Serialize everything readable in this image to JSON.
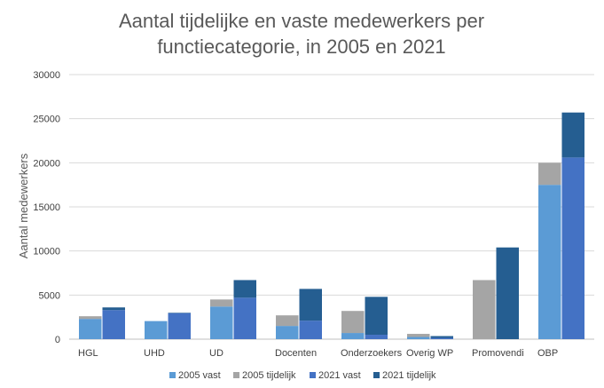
{
  "chart_data": {
    "type": "bar",
    "subtype": "grouped-stacked",
    "title_lines": [
      "Aantal tijdelijke en vaste medewerkers per",
      "functiecategorie, in 2005 en 2021"
    ],
    "xlabel": "",
    "ylabel": "Aantal medewerkers",
    "ylim": [
      0,
      30000
    ],
    "yticks": [
      0,
      5000,
      10000,
      15000,
      20000,
      25000,
      30000
    ],
    "ytick_labels": [
      "0",
      "5000",
      "10000",
      "15000",
      "20000",
      "25000",
      "30000"
    ],
    "grid": true,
    "legend_position": "bottom",
    "categories": [
      "HGL",
      "UHD",
      "UD",
      "Docenten",
      "Onderzoekers",
      "Overig WP",
      "Promovendi",
      "OBP"
    ],
    "stacks": [
      {
        "year": "2005",
        "series": [
          {
            "name": "2005 vast",
            "color": "#5b9bd5",
            "values": [
              2300,
              2050,
              3700,
              1500,
              700,
              250,
              0,
              17500
            ]
          },
          {
            "name": "2005 tijdelijk",
            "color": "#a5a5a5",
            "values": [
              300,
              0,
              800,
              1200,
              2500,
              350,
              6700,
              2500
            ]
          }
        ]
      },
      {
        "year": "2021",
        "series": [
          {
            "name": "2021 vast",
            "color": "#4472c4",
            "values": [
              3300,
              2950,
              4700,
              2100,
              500,
              150,
              0,
              20600
            ]
          },
          {
            "name": "2021 tijdelijk",
            "color": "#255e91",
            "values": [
              300,
              50,
              2000,
              3600,
              4300,
              200,
              10400,
              5100
            ]
          }
        ]
      }
    ]
  },
  "legend": [
    {
      "label": "2005 vast",
      "color": "#5b9bd5"
    },
    {
      "label": "2005 tijdelijk",
      "color": "#a5a5a5"
    },
    {
      "label": "2021 vast",
      "color": "#4472c4"
    },
    {
      "label": "2021 tijdelijk",
      "color": "#255e91"
    }
  ]
}
